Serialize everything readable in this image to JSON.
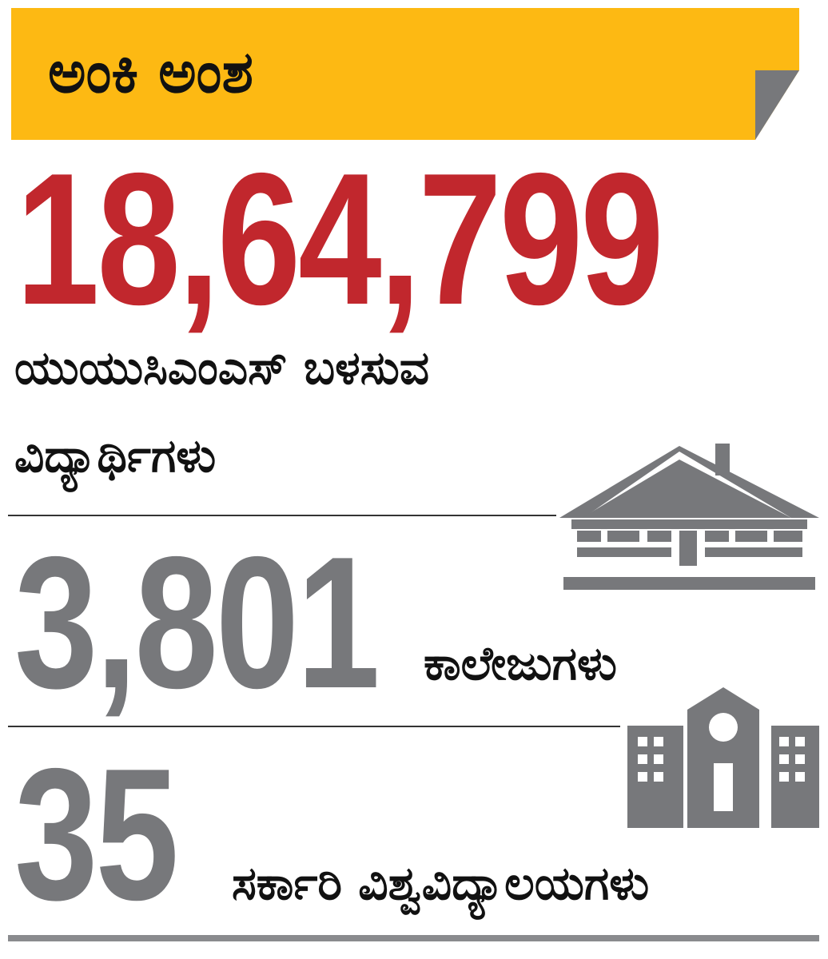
{
  "header": {
    "title": "ಅಂಕಿ ಅಂಶ"
  },
  "stats": [
    {
      "number": "18,64,799",
      "label_lines": [
        "ಯುಯುಸಿಎಂಎಸ್ ಬಳಸುವ",
        "ವಿದ್ಯಾರ್ಥಿಗಳು"
      ]
    },
    {
      "number": "3,801",
      "label_lines": [
        "ಕಾಲೇಜುಗಳು"
      ]
    },
    {
      "number": "35",
      "label_lines": [
        "ಸರ್ಕಾರಿ ವಿಶ್ವವಿದ್ಯಾಲಯಗಳು"
      ]
    }
  ]
}
